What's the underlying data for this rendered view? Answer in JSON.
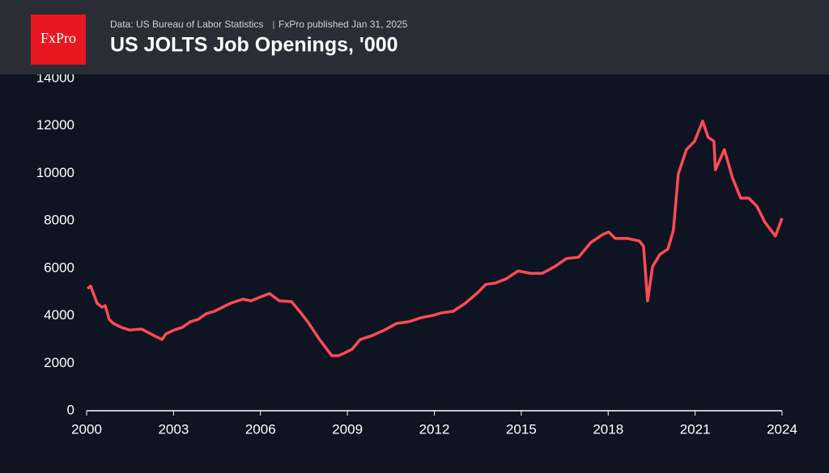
{
  "chart_data": {
    "type": "line",
    "logo": "FxPro",
    "source": "Data: US Bureau of Labor Statistics",
    "published": "FxPro published Jan 31, 2025",
    "title": "US JOLTS Job Openings, '000",
    "x": [
      2000.03,
      2000.14,
      2000.36,
      2000.53,
      2000.64,
      2000.78,
      2000.92,
      2001.2,
      2001.48,
      2001.9,
      2002.32,
      2002.6,
      2002.74,
      2003.02,
      2003.3,
      2003.58,
      2003.85,
      2004.13,
      2004.41,
      2004.69,
      2004.97,
      2005.39,
      2005.67,
      2005.95,
      2006.31,
      2006.65,
      2007.07,
      2007.35,
      2007.63,
      2008.04,
      2008.46,
      2008.69,
      2008.88,
      2009.16,
      2009.44,
      2009.86,
      2010.28,
      2010.7,
      2011.12,
      2011.54,
      2011.96,
      2012.23,
      2012.65,
      2013.07,
      2013.49,
      2013.77,
      2014.11,
      2014.47,
      2014.89,
      2015.31,
      2015.73,
      2016.15,
      2016.56,
      2016.98,
      2017.4,
      2017.82,
      2018.02,
      2018.24,
      2018.66,
      2019.08,
      2019.22,
      2019.36,
      2019.53,
      2019.78,
      2020.06,
      2020.25,
      2020.42,
      2020.7,
      2020.98,
      2021.26,
      2021.45,
      2021.65,
      2021.7,
      2022.01,
      2022.29,
      2022.57,
      2022.85,
      2023.13,
      2023.41,
      2023.77,
      2024.0
    ],
    "series": [
      {
        "name": "Job openings",
        "color": "#ff4b55",
        "values": [
          5150,
          5250,
          4530,
          4360,
          4430,
          3850,
          3680,
          3510,
          3400,
          3440,
          3170,
          3000,
          3240,
          3400,
          3510,
          3750,
          3850,
          4090,
          4190,
          4360,
          4530,
          4700,
          4630,
          4770,
          4940,
          4630,
          4600,
          4190,
          3750,
          3000,
          2320,
          2320,
          2420,
          2590,
          3000,
          3170,
          3400,
          3680,
          3750,
          3920,
          4020,
          4120,
          4190,
          4530,
          4970,
          5320,
          5380,
          5550,
          5890,
          5790,
          5790,
          6070,
          6410,
          6470,
          7090,
          7430,
          7530,
          7260,
          7260,
          7150,
          6920,
          4630,
          6070,
          6580,
          6810,
          7600,
          9980,
          11000,
          11350,
          12200,
          11520,
          11350,
          10150,
          11000,
          9810,
          8960,
          8960,
          8620,
          7940,
          7360,
          8110
        ]
      }
    ],
    "xlim": [
      2000,
      2024
    ],
    "xticks": [
      2000,
      2003,
      2006,
      2009,
      2012,
      2015,
      2018,
      2021,
      2024
    ],
    "ylim": [
      0,
      14000
    ],
    "yticks": [
      0,
      2000,
      4000,
      6000,
      8000,
      10000,
      12000,
      14000
    ],
    "grid": false
  }
}
